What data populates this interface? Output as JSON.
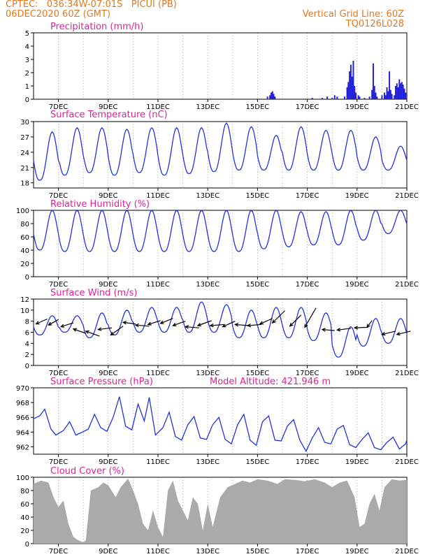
{
  "header": {
    "line1": "CPTEC:   036:34W-07:01S   PICUI (PB)",
    "line2": "06DEC2020 60Z (GMT)",
    "grid_note": "Vertical Grid Line: 60Z",
    "model": "TQ0126L028"
  },
  "colors": {
    "header": "#e07a1f",
    "title": "#e0219a",
    "line": "#2233dd",
    "bar": "#2222dd",
    "cloud": "#aaaaaa",
    "wind_arrow": "#000000"
  },
  "x_ticks": [
    "7DEC",
    "9DEC",
    "11DEC",
    "13DEC",
    "15DEC",
    "17DEC",
    "19DEC",
    "21DEC"
  ],
  "chart_data": [
    {
      "type": "bar",
      "title": "Precipitation (mm/h)",
      "ylim": [
        0,
        5
      ],
      "yticks": [
        0,
        1,
        2,
        3,
        4,
        5
      ],
      "x_range_days": [
        6.0,
        21.0
      ],
      "points": [
        [
          15.4,
          0.2
        ],
        [
          15.5,
          0.3
        ],
        [
          15.55,
          0.5
        ],
        [
          15.6,
          0.6
        ],
        [
          15.65,
          0.4
        ],
        [
          15.7,
          0.2
        ],
        [
          17.2,
          0.1
        ],
        [
          17.6,
          0.1
        ],
        [
          17.8,
          0.2
        ],
        [
          18.0,
          0.1
        ],
        [
          18.1,
          0.3
        ],
        [
          18.2,
          0.2
        ],
        [
          18.5,
          0.2
        ],
        [
          18.6,
          0.9
        ],
        [
          18.65,
          1.3
        ],
        [
          18.7,
          2.1
        ],
        [
          18.75,
          2.6
        ],
        [
          18.8,
          1.7
        ],
        [
          18.85,
          2.9
        ],
        [
          18.9,
          1.0
        ],
        [
          18.95,
          0.5
        ],
        [
          19.05,
          0.3
        ],
        [
          19.1,
          0.2
        ],
        [
          19.3,
          0.1
        ],
        [
          19.5,
          0.2
        ],
        [
          19.6,
          0.7
        ],
        [
          19.65,
          2.7
        ],
        [
          19.7,
          1.0
        ],
        [
          19.75,
          0.5
        ],
        [
          19.8,
          0.2
        ],
        [
          20.0,
          0.3
        ],
        [
          20.1,
          0.5
        ],
        [
          20.15,
          0.3
        ],
        [
          20.2,
          0.9
        ],
        [
          20.25,
          0.6
        ],
        [
          20.3,
          2.1
        ],
        [
          20.35,
          0.7
        ],
        [
          20.4,
          0.4
        ],
        [
          20.5,
          0.3
        ],
        [
          20.55,
          1.0
        ],
        [
          20.6,
          1.2
        ],
        [
          20.65,
          0.9
        ],
        [
          20.7,
          1.5
        ],
        [
          20.75,
          1.2
        ],
        [
          20.8,
          1.3
        ],
        [
          20.85,
          1.1
        ],
        [
          20.9,
          0.8
        ],
        [
          20.95,
          0.5
        ]
      ]
    },
    {
      "type": "line",
      "title": "Surface Temperature (nC)",
      "ylim": [
        17,
        30
      ],
      "yticks": [
        18,
        21,
        24,
        27,
        30
      ],
      "daily_min": [
        18.5,
        19.5,
        20.0,
        19.5,
        20.0,
        19.5,
        19.8,
        20.2,
        20.5,
        20.5,
        20.5,
        20.5,
        20.5,
        20.5,
        20.5
      ],
      "daily_max": [
        28.0,
        28.8,
        28.8,
        28.5,
        28.8,
        28.8,
        28.8,
        29.7,
        29.0,
        27.3,
        29.0,
        28.3,
        28.3,
        27.0,
        25.2
      ],
      "start": 21.0,
      "end": 22.0
    },
    {
      "type": "line",
      "title": "Relative Humidity (%)",
      "ylim": [
        0,
        100
      ],
      "yticks": [
        0,
        20,
        40,
        60,
        80,
        100
      ],
      "daily_min": [
        40,
        38,
        38,
        38,
        38,
        38,
        38,
        38,
        38,
        42,
        45,
        48,
        48,
        55,
        65
      ],
      "daily_max": [
        100,
        100,
        100,
        100,
        100,
        100,
        100,
        100,
        100,
        100,
        98,
        98,
        100,
        100,
        100
      ],
      "start": 72,
      "end": 98
    },
    {
      "type": "line",
      "title": "Surface Wind (m/s)",
      "ylim": [
        0,
        12
      ],
      "yticks": [
        0,
        2,
        4,
        6,
        8,
        10,
        12
      ],
      "daily_min": [
        5.5,
        6.0,
        5.0,
        5.5,
        6.0,
        6.0,
        6.0,
        6.0,
        5.0,
        5.0,
        5.0,
        4.5,
        1.5,
        3.5,
        4.0
      ],
      "daily_max": [
        9.0,
        9.0,
        9.5,
        10.0,
        10.5,
        10.5,
        11.5,
        11.0,
        10.0,
        10.5,
        10.5,
        9.5,
        7.0,
        8.5,
        8.5
      ],
      "start": 7.5,
      "end": 5.0,
      "barbs": [
        [
          6.1,
          7.5,
          0.45,
          0.9
        ],
        [
          6.6,
          7.3,
          0.4,
          1.0
        ],
        [
          7.1,
          7.0,
          0.5,
          0.7
        ],
        [
          7.6,
          6.6,
          0.5,
          -0.8
        ],
        [
          8.1,
          6.2,
          0.55,
          -0.9
        ],
        [
          8.6,
          6.5,
          0.55,
          0.3
        ],
        [
          9.1,
          5.5,
          0.5,
          1.6
        ],
        [
          9.6,
          7.8,
          0.5,
          -0.3
        ],
        [
          10.1,
          7.3,
          0.55,
          -0.2
        ],
        [
          10.6,
          7.4,
          0.5,
          0.7
        ],
        [
          11.1,
          7.6,
          0.5,
          0.9
        ],
        [
          11.6,
          7.2,
          0.5,
          0.8
        ],
        [
          12.1,
          7.0,
          0.55,
          -0.2
        ],
        [
          12.6,
          7.2,
          0.55,
          0.9
        ],
        [
          13.1,
          7.2,
          0.55,
          0.2
        ],
        [
          13.6,
          7.0,
          0.5,
          1.0
        ],
        [
          14.1,
          7.4,
          0.55,
          -0.2
        ],
        [
          14.6,
          7.2,
          0.55,
          0.2
        ],
        [
          15.1,
          7.5,
          0.5,
          1.0
        ],
        [
          15.6,
          7.7,
          0.5,
          2.2
        ],
        [
          16.3,
          7.1,
          0.45,
          2.0
        ],
        [
          16.9,
          6.9,
          0.45,
          3.5
        ],
        [
          17.6,
          6.5,
          0.5,
          -0.2
        ],
        [
          18.2,
          6.4,
          0.55,
          0.3
        ],
        [
          18.9,
          6.8,
          0.55,
          0.1
        ],
        [
          19.4,
          6.9,
          0.2,
          1.2
        ],
        [
          20.0,
          5.6,
          0.55,
          0.6
        ],
        [
          20.6,
          5.6,
          0.55,
          0.6
        ]
      ]
    },
    {
      "type": "line",
      "title": "Surface Pressure (hPa)",
      "annotation": "Model Altitude: 421.946 m",
      "ylim": [
        961.0,
        970.0
      ],
      "yticks": [
        962,
        964,
        966,
        968,
        970
      ],
      "profile": [
        [
          6.0,
          965.8
        ],
        [
          6.25,
          966.2
        ],
        [
          6.45,
          967.1
        ],
        [
          6.7,
          964.4
        ],
        [
          6.9,
          963.6
        ],
        [
          7.2,
          964.2
        ],
        [
          7.45,
          965.4
        ],
        [
          7.7,
          963.6
        ],
        [
          7.9,
          963.9
        ],
        [
          8.2,
          964.4
        ],
        [
          8.45,
          966.4
        ],
        [
          8.7,
          964.6
        ],
        [
          8.95,
          964.1
        ],
        [
          9.2,
          966.0
        ],
        [
          9.45,
          968.8
        ],
        [
          9.7,
          964.8
        ],
        [
          9.95,
          964.3
        ],
        [
          10.2,
          967.8
        ],
        [
          10.45,
          965.5
        ],
        [
          10.65,
          968.7
        ],
        [
          10.9,
          963.6
        ],
        [
          11.2,
          964.6
        ],
        [
          11.45,
          966.7
        ],
        [
          11.7,
          963.4
        ],
        [
          11.95,
          962.9
        ],
        [
          12.2,
          965.0
        ],
        [
          12.45,
          966.1
        ],
        [
          12.7,
          963.2
        ],
        [
          12.95,
          963.0
        ],
        [
          13.2,
          965.0
        ],
        [
          13.45,
          966.0
        ],
        [
          13.7,
          963.0
        ],
        [
          13.95,
          962.4
        ],
        [
          14.2,
          965.0
        ],
        [
          14.45,
          966.4
        ],
        [
          14.7,
          962.9
        ],
        [
          14.95,
          962.2
        ],
        [
          15.2,
          965.4
        ],
        [
          15.45,
          966.2
        ],
        [
          15.7,
          962.9
        ],
        [
          15.95,
          962.8
        ],
        [
          16.2,
          964.8
        ],
        [
          16.45,
          965.7
        ],
        [
          16.7,
          962.9
        ],
        [
          16.95,
          961.4
        ],
        [
          17.2,
          963.2
        ],
        [
          17.45,
          964.6
        ],
        [
          17.7,
          962.6
        ],
        [
          17.95,
          962.4
        ],
        [
          18.2,
          964.4
        ],
        [
          18.45,
          964.9
        ],
        [
          18.7,
          962.3
        ],
        [
          18.95,
          961.9
        ],
        [
          19.2,
          963.0
        ],
        [
          19.45,
          963.9
        ],
        [
          19.7,
          961.9
        ],
        [
          19.95,
          961.6
        ],
        [
          20.2,
          962.6
        ],
        [
          20.45,
          963.3
        ],
        [
          20.7,
          961.7
        ],
        [
          20.95,
          962.4
        ],
        [
          21.0,
          962.9
        ]
      ]
    },
    {
      "type": "area",
      "title": "Cloud Cover (%)",
      "ylim": [
        0,
        100
      ],
      "yticks": [
        0,
        20,
        40,
        60,
        80,
        100
      ],
      "profile": [
        [
          6.0,
          90
        ],
        [
          6.3,
          95
        ],
        [
          6.6,
          92
        ],
        [
          6.8,
          70
        ],
        [
          7.0,
          55
        ],
        [
          7.2,
          65
        ],
        [
          7.4,
          30
        ],
        [
          7.6,
          10
        ],
        [
          7.8,
          5
        ],
        [
          8.0,
          2
        ],
        [
          8.1,
          5
        ],
        [
          8.3,
          80
        ],
        [
          8.6,
          85
        ],
        [
          8.8,
          92
        ],
        [
          9.0,
          88
        ],
        [
          9.3,
          70
        ],
        [
          9.5,
          85
        ],
        [
          9.8,
          98
        ],
        [
          10.0,
          80
        ],
        [
          10.2,
          60
        ],
        [
          10.4,
          30
        ],
        [
          10.6,
          20
        ],
        [
          10.8,
          50
        ],
        [
          11.0,
          25
        ],
        [
          11.2,
          10
        ],
        [
          11.4,
          80
        ],
        [
          11.6,
          95
        ],
        [
          11.8,
          65
        ],
        [
          12.0,
          50
        ],
        [
          12.2,
          35
        ],
        [
          12.4,
          70
        ],
        [
          12.6,
          60
        ],
        [
          12.8,
          20
        ],
        [
          13.0,
          60
        ],
        [
          13.2,
          25
        ],
        [
          13.5,
          70
        ],
        [
          13.8,
          85
        ],
        [
          14.1,
          90
        ],
        [
          14.4,
          95
        ],
        [
          14.7,
          92
        ],
        [
          15.0,
          97
        ],
        [
          15.4,
          95
        ],
        [
          15.8,
          90
        ],
        [
          16.1,
          97
        ],
        [
          16.5,
          96
        ],
        [
          16.9,
          94
        ],
        [
          17.3,
          97
        ],
        [
          17.7,
          92
        ],
        [
          18.0,
          85
        ],
        [
          18.3,
          92
        ],
        [
          18.6,
          95
        ],
        [
          18.9,
          70
        ],
        [
          19.1,
          25
        ],
        [
          19.3,
          30
        ],
        [
          19.5,
          60
        ],
        [
          19.7,
          75
        ],
        [
          19.9,
          50
        ],
        [
          20.1,
          85
        ],
        [
          20.4,
          97
        ],
        [
          20.7,
          95
        ],
        [
          21.0,
          96
        ]
      ]
    }
  ]
}
